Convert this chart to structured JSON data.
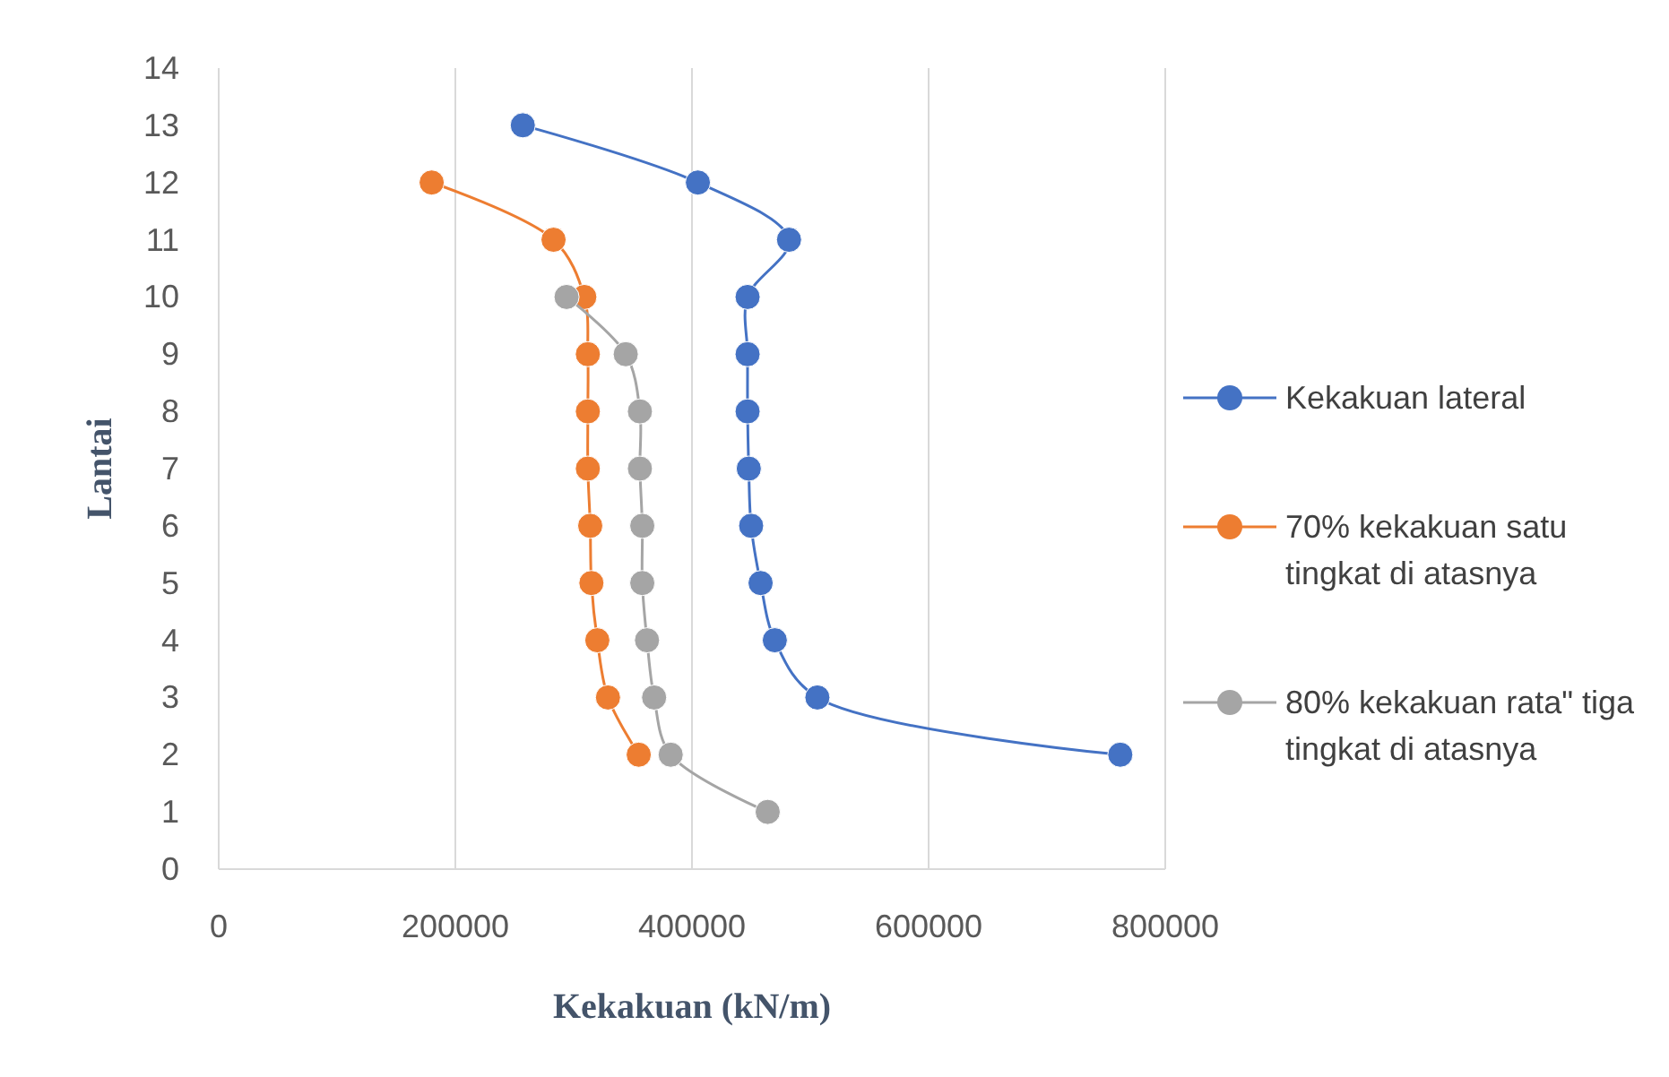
{
  "chart_data": {
    "type": "line",
    "xlabel": "Kekakuan (kN/m)",
    "ylabel": "Lantai",
    "xlim": [
      0,
      800000
    ],
    "xticks": [
      0,
      200000,
      400000,
      600000,
      800000
    ],
    "ylim": [
      0,
      14
    ],
    "yticks": [
      0,
      1,
      2,
      3,
      4,
      5,
      6,
      7,
      8,
      9,
      10,
      11,
      12,
      13,
      14
    ],
    "grid": "x",
    "legend": "right",
    "marker": "circle",
    "line_style": "solid",
    "series": [
      {
        "name": "Kekakuan lateral",
        "color": "#4472c4",
        "x": [
          257000,
          405000,
          482000,
          447000,
          447000,
          447000,
          448000,
          450000,
          458000,
          470000,
          506000,
          762000
        ],
        "values": [
          13,
          12,
          11,
          10,
          9,
          8,
          7,
          6,
          5,
          4,
          3,
          2
        ]
      },
      {
        "name": "70% kekakuan satu tingkat di atasnya",
        "color": "#ed7d31",
        "x": [
          180000,
          283000,
          309000,
          312000,
          312000,
          312000,
          314000,
          315000,
          320000,
          329000,
          355000
        ],
        "values": [
          12,
          11,
          10,
          9,
          8,
          7,
          6,
          5,
          4,
          3,
          2
        ]
      },
      {
        "name": "80% kekakuan rata\" tiga tingkat di atasnya",
        "color": "#a5a5a5",
        "x": [
          294000,
          344000,
          356000,
          356000,
          358000,
          358000,
          362000,
          368000,
          382000,
          464000
        ],
        "values": [
          10,
          9,
          8,
          7,
          6,
          5,
          4,
          3,
          2,
          1
        ]
      }
    ]
  }
}
